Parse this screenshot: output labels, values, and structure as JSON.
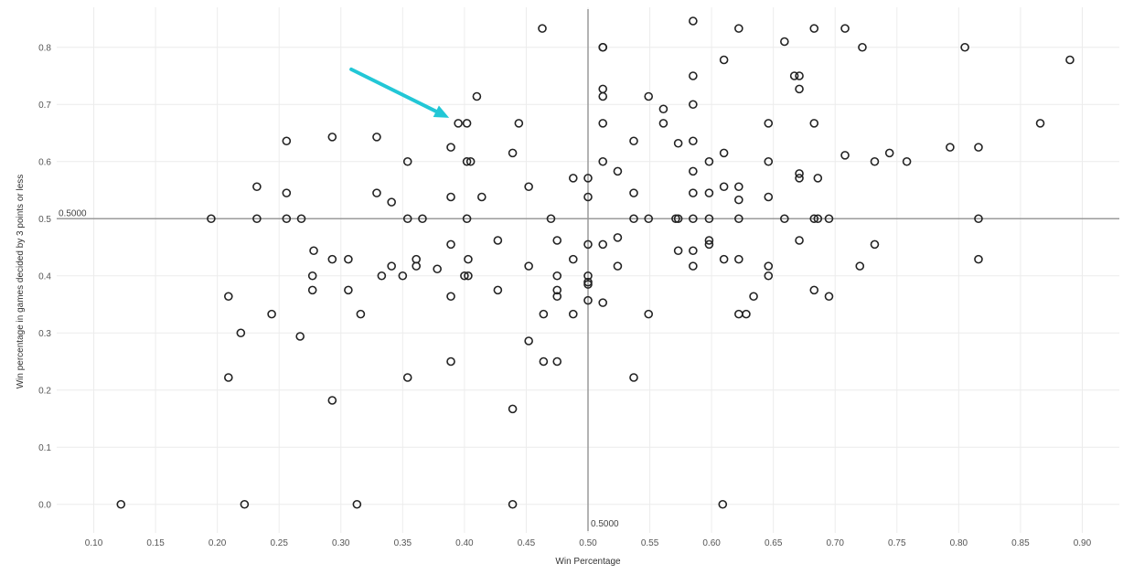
{
  "chart_data": {
    "type": "scatter",
    "xlabel": "Win Percentage",
    "ylabel": "Win percentage in games decided by 3 points or less",
    "xlim": [
      0.07,
      0.93
    ],
    "ylim": [
      -0.05,
      0.87
    ],
    "x_ticks": [
      "0.10",
      "0.15",
      "0.20",
      "0.25",
      "0.30",
      "0.35",
      "0.40",
      "0.45",
      "0.50",
      "0.55",
      "0.60",
      "0.65",
      "0.70",
      "0.75",
      "0.80",
      "0.85",
      "0.90"
    ],
    "y_ticks": [
      "0.0",
      "0.1",
      "0.2",
      "0.3",
      "0.4",
      "0.5",
      "0.6",
      "0.7",
      "0.8"
    ],
    "grid": true,
    "reference_lines": {
      "x": 0.5,
      "y": 0.5,
      "x_label": "0.5000",
      "y_label": "0.5000"
    },
    "marker": "hollow-circle",
    "marker_color": "#222222",
    "arrow_color": "#22c7d6",
    "annotation_arrow": {
      "points_to": [
        0.395,
        0.667
      ]
    },
    "points": [
      [
        0.122,
        0.0
      ],
      [
        0.222,
        0.0
      ],
      [
        0.313,
        0.0
      ],
      [
        0.439,
        0.0
      ],
      [
        0.609,
        0.0
      ],
      [
        0.439,
        0.167
      ],
      [
        0.293,
        0.182
      ],
      [
        0.209,
        0.222
      ],
      [
        0.354,
        0.222
      ],
      [
        0.537,
        0.222
      ],
      [
        0.389,
        0.25
      ],
      [
        0.464,
        0.25
      ],
      [
        0.475,
        0.25
      ],
      [
        0.267,
        0.294
      ],
      [
        0.219,
        0.3
      ],
      [
        0.452,
        0.286
      ],
      [
        0.244,
        0.333
      ],
      [
        0.316,
        0.333
      ],
      [
        0.464,
        0.333
      ],
      [
        0.488,
        0.333
      ],
      [
        0.549,
        0.333
      ],
      [
        0.622,
        0.333
      ],
      [
        0.628,
        0.333
      ],
      [
        0.209,
        0.364
      ],
      [
        0.306,
        0.375
      ],
      [
        0.277,
        0.375
      ],
      [
        0.389,
        0.364
      ],
      [
        0.427,
        0.375
      ],
      [
        0.475,
        0.364
      ],
      [
        0.475,
        0.375
      ],
      [
        0.5,
        0.357
      ],
      [
        0.512,
        0.353
      ],
      [
        0.634,
        0.364
      ],
      [
        0.683,
        0.375
      ],
      [
        0.695,
        0.364
      ],
      [
        0.277,
        0.4
      ],
      [
        0.333,
        0.4
      ],
      [
        0.35,
        0.4
      ],
      [
        0.4,
        0.4
      ],
      [
        0.403,
        0.4
      ],
      [
        0.475,
        0.4
      ],
      [
        0.5,
        0.4
      ],
      [
        0.5,
        0.389
      ],
      [
        0.5,
        0.385
      ],
      [
        0.646,
        0.4
      ],
      [
        0.278,
        0.444
      ],
      [
        0.293,
        0.429
      ],
      [
        0.306,
        0.429
      ],
      [
        0.341,
        0.417
      ],
      [
        0.361,
        0.417
      ],
      [
        0.361,
        0.429
      ],
      [
        0.378,
        0.412
      ],
      [
        0.389,
        0.455
      ],
      [
        0.403,
        0.429
      ],
      [
        0.427,
        0.462
      ],
      [
        0.452,
        0.417
      ],
      [
        0.475,
        0.462
      ],
      [
        0.488,
        0.429
      ],
      [
        0.5,
        0.455
      ],
      [
        0.512,
        0.455
      ],
      [
        0.524,
        0.467
      ],
      [
        0.524,
        0.417
      ],
      [
        0.573,
        0.444
      ],
      [
        0.585,
        0.444
      ],
      [
        0.585,
        0.417
      ],
      [
        0.598,
        0.455
      ],
      [
        0.598,
        0.462
      ],
      [
        0.61,
        0.429
      ],
      [
        0.622,
        0.429
      ],
      [
        0.646,
        0.417
      ],
      [
        0.671,
        0.462
      ],
      [
        0.72,
        0.417
      ],
      [
        0.732,
        0.455
      ],
      [
        0.816,
        0.429
      ],
      [
        0.195,
        0.5
      ],
      [
        0.232,
        0.5
      ],
      [
        0.256,
        0.5
      ],
      [
        0.268,
        0.5
      ],
      [
        0.354,
        0.5
      ],
      [
        0.366,
        0.5
      ],
      [
        0.402,
        0.5
      ],
      [
        0.47,
        0.5
      ],
      [
        0.537,
        0.5
      ],
      [
        0.549,
        0.5
      ],
      [
        0.571,
        0.5
      ],
      [
        0.573,
        0.5
      ],
      [
        0.585,
        0.5
      ],
      [
        0.598,
        0.5
      ],
      [
        0.622,
        0.5
      ],
      [
        0.659,
        0.5
      ],
      [
        0.683,
        0.5
      ],
      [
        0.686,
        0.5
      ],
      [
        0.695,
        0.5
      ],
      [
        0.816,
        0.5
      ],
      [
        0.232,
        0.556
      ],
      [
        0.256,
        0.545
      ],
      [
        0.329,
        0.545
      ],
      [
        0.341,
        0.529
      ],
      [
        0.389,
        0.538
      ],
      [
        0.414,
        0.538
      ],
      [
        0.452,
        0.556
      ],
      [
        0.488,
        0.571
      ],
      [
        0.5,
        0.571
      ],
      [
        0.5,
        0.538
      ],
      [
        0.537,
        0.545
      ],
      [
        0.585,
        0.545
      ],
      [
        0.598,
        0.545
      ],
      [
        0.61,
        0.556
      ],
      [
        0.622,
        0.556
      ],
      [
        0.622,
        0.533
      ],
      [
        0.646,
        0.538
      ],
      [
        0.671,
        0.571
      ],
      [
        0.671,
        0.579
      ],
      [
        0.686,
        0.571
      ],
      [
        0.256,
        0.636
      ],
      [
        0.293,
        0.643
      ],
      [
        0.329,
        0.643
      ],
      [
        0.354,
        0.6
      ],
      [
        0.389,
        0.625
      ],
      [
        0.402,
        0.6
      ],
      [
        0.405,
        0.6
      ],
      [
        0.439,
        0.615
      ],
      [
        0.512,
        0.6
      ],
      [
        0.524,
        0.583
      ],
      [
        0.537,
        0.636
      ],
      [
        0.573,
        0.632
      ],
      [
        0.585,
        0.583
      ],
      [
        0.585,
        0.636
      ],
      [
        0.598,
        0.6
      ],
      [
        0.61,
        0.615
      ],
      [
        0.646,
        0.6
      ],
      [
        0.708,
        0.611
      ],
      [
        0.732,
        0.6
      ],
      [
        0.744,
        0.615
      ],
      [
        0.758,
        0.6
      ],
      [
        0.793,
        0.625
      ],
      [
        0.816,
        0.625
      ],
      [
        0.395,
        0.667
      ],
      [
        0.402,
        0.667
      ],
      [
        0.444,
        0.667
      ],
      [
        0.512,
        0.667
      ],
      [
        0.561,
        0.667
      ],
      [
        0.646,
        0.667
      ],
      [
        0.683,
        0.667
      ],
      [
        0.866,
        0.667
      ],
      [
        0.41,
        0.714
      ],
      [
        0.512,
        0.714
      ],
      [
        0.512,
        0.727
      ],
      [
        0.549,
        0.714
      ],
      [
        0.561,
        0.692
      ],
      [
        0.585,
        0.7
      ],
      [
        0.671,
        0.727
      ],
      [
        0.585,
        0.75
      ],
      [
        0.667,
        0.75
      ],
      [
        0.671,
        0.75
      ],
      [
        0.61,
        0.778
      ],
      [
        0.89,
        0.778
      ],
      [
        0.512,
        0.8
      ],
      [
        0.512,
        0.8
      ],
      [
        0.659,
        0.81
      ],
      [
        0.722,
        0.8
      ],
      [
        0.805,
        0.8
      ],
      [
        0.463,
        0.833
      ],
      [
        0.585,
        0.846
      ],
      [
        0.622,
        0.833
      ],
      [
        0.683,
        0.833
      ],
      [
        0.708,
        0.833
      ]
    ]
  }
}
